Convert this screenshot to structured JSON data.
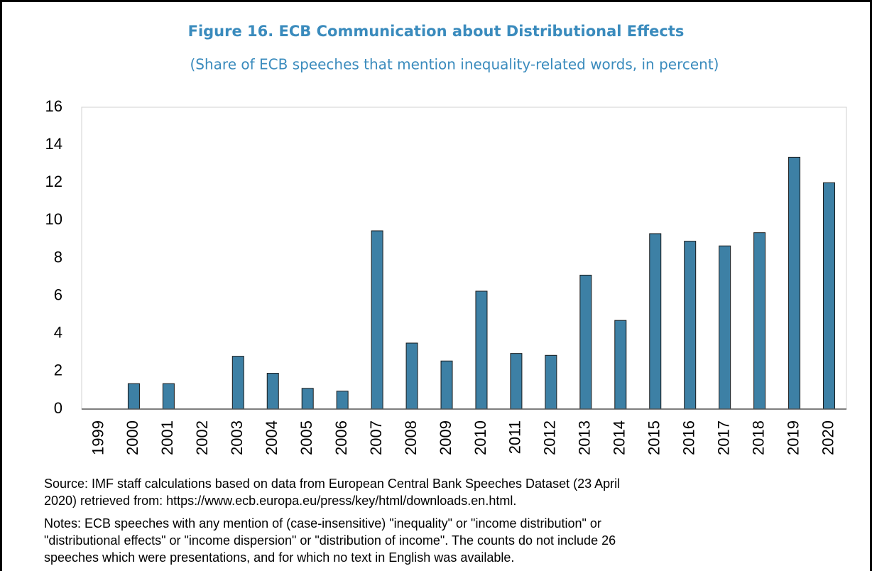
{
  "chart_data": {
    "type": "bar",
    "title": "Figure 16. ECB Communication about Distributional Effects",
    "subtitle": "(Share of ECB speeches that mention inequality-related words, in percent)",
    "categories": [
      "1999",
      "2000",
      "2001",
      "2002",
      "2003",
      "2004",
      "2005",
      "2006",
      "2007",
      "2008",
      "2009",
      "2010",
      "2011",
      "2012",
      "2013",
      "2014",
      "2015",
      "2016",
      "2017",
      "2018",
      "2019",
      "2020"
    ],
    "values": [
      0,
      1.35,
      1.35,
      0,
      2.8,
      1.9,
      1.1,
      0.95,
      9.45,
      3.5,
      2.55,
      6.25,
      2.95,
      2.85,
      7.1,
      4.7,
      9.3,
      8.9,
      8.65,
      9.35,
      13.35,
      12.0
    ],
    "color": "#3d80a5",
    "ylim": [
      0,
      16
    ],
    "yticks": [
      0,
      2,
      4,
      6,
      8,
      10,
      12,
      14,
      16
    ],
    "grid": false,
    "source": [
      "Source: IMF staff calculations based on data from European Central Bank Speeches Dataset (23 April",
      "2020) retrieved from: https://www.ecb.europa.eu/press/key/html/downloads.en.html."
    ],
    "notes": [
      "Notes: ECB speeches with any mention of (case-insensitive) \"inequality\" or \"income distribution\" or",
      "\"distributional effects\" or \"income dispersion\" or \"distribution of income\". The counts do not include 26",
      "speeches which were presentations, and for which no text in English was available."
    ]
  }
}
